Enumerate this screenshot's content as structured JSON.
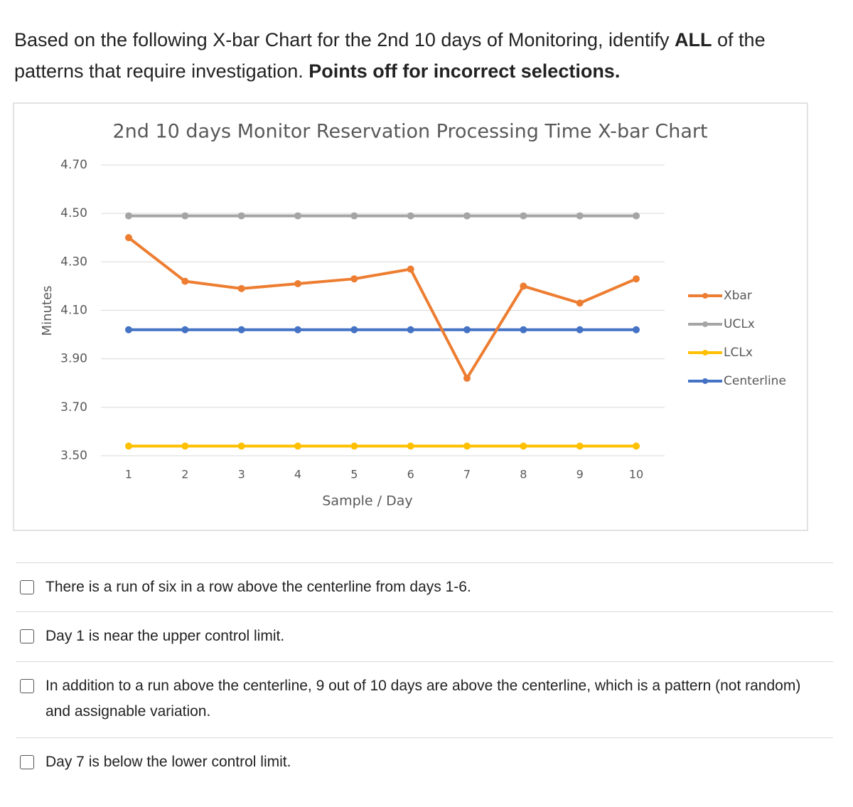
{
  "question_parts": [
    "Based on the following X-bar Chart for the 2nd 10 days of Monitoring, identify ",
    "ALL",
    " of the patterns that require investigation. ",
    "Points off for incorrect selections."
  ],
  "chart_data": {
    "type": "line",
    "title": "2nd 10 days Monitor Reservation Processing Time X-bar Chart",
    "x_label": "Sample / Day",
    "y_label": "Minutes",
    "categories": [
      "1",
      "2",
      "3",
      "4",
      "5",
      "6",
      "7",
      "8",
      "9",
      "10"
    ],
    "series": [
      {
        "name": "Xbar",
        "color": "#ed7d31",
        "values": [
          4.4,
          4.22,
          4.19,
          4.21,
          4.23,
          4.27,
          3.82,
          4.2,
          4.13,
          4.23
        ]
      },
      {
        "name": "UCLx",
        "color": "#a5a5a5",
        "values": [
          4.49,
          4.49,
          4.49,
          4.49,
          4.49,
          4.49,
          4.49,
          4.49,
          4.49,
          4.49
        ]
      },
      {
        "name": "LCLx",
        "color": "#ffc000",
        "values": [
          3.54,
          3.54,
          3.54,
          3.54,
          3.54,
          3.54,
          3.54,
          3.54,
          3.54,
          3.54
        ]
      },
      {
        "name": "Centerline",
        "color": "#4472c4",
        "values": [
          4.02,
          4.02,
          4.02,
          4.02,
          4.02,
          4.02,
          4.02,
          4.02,
          4.02,
          4.02
        ]
      }
    ],
    "ylim": [
      3.5,
      4.7
    ],
    "yticks": [
      {
        "value": 3.5,
        "label": "3.50"
      },
      {
        "value": 3.7,
        "label": "3.70"
      },
      {
        "value": 3.9,
        "label": "3.90"
      },
      {
        "value": 4.1,
        "label": "4.10"
      },
      {
        "value": 4.3,
        "label": "4.30"
      },
      {
        "value": 4.5,
        "label": "4.50"
      },
      {
        "value": 4.7,
        "label": "4.70"
      }
    ],
    "grid": true,
    "legend": "right"
  },
  "options": [
    "There is a run of six in a row above the centerline from days 1-6.",
    "Day 1 is near the upper control limit.",
    "In addition to a run above the centerline, 9 out of 10 days are above the centerline, which is a pattern (not random) and assignable variation.",
    "Day 7 is below the lower control limit."
  ]
}
